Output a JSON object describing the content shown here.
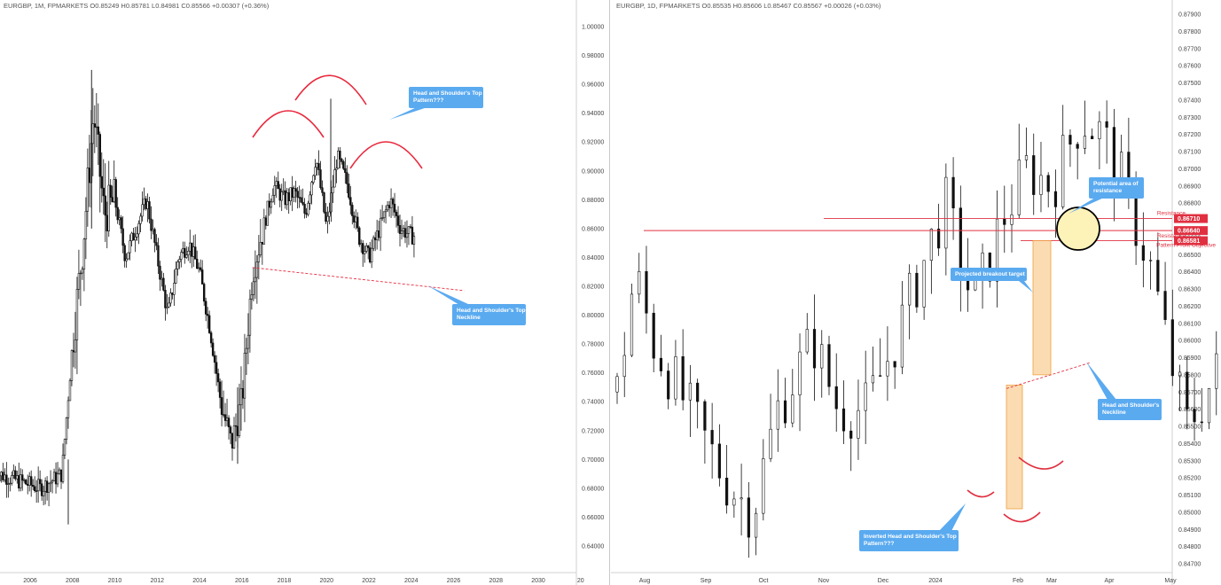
{
  "chart_data": [
    {
      "type": "candlestick",
      "header": "EURGBP, 1M, FPMARKETS  O0.85249  H0.85781  L0.84981  C0.85566  +0.00307 (+0.36%)",
      "symbol": "EURGBP",
      "timeframe": "1M",
      "broker": "FPMARKETS",
      "ohlc": {
        "open": 0.85249,
        "high": 0.85781,
        "low": 0.84981,
        "close": 0.85566,
        "change": "+0.00307 (+0.36%)"
      },
      "ylim": [
        0.63,
        1.02
      ],
      "y_ticks": [
        "1.00000",
        "0.98000",
        "0.96000",
        "0.94000",
        "0.92000",
        "0.90000",
        "0.88000",
        "0.86000",
        "0.84000",
        "0.82000",
        "0.80000",
        "0.78000",
        "0.76000",
        "0.74000",
        "0.72000",
        "0.70000",
        "0.68000",
        "0.66000",
        "0.64000"
      ],
      "x_ticks": [
        "2006",
        "2008",
        "2010",
        "2012",
        "2014",
        "2016",
        "2018",
        "2020",
        "2022",
        "2024",
        "2026",
        "2028",
        "2030",
        "20"
      ],
      "series_approx": [
        {
          "year": 2004.5,
          "value": 0.69
        },
        {
          "year": 2005.5,
          "value": 0.685
        },
        {
          "year": 2006.5,
          "value": 0.68
        },
        {
          "year": 2007.5,
          "value": 0.69
        },
        {
          "year": 2008.0,
          "value": 0.78
        },
        {
          "year": 2008.5,
          "value": 0.85
        },
        {
          "year": 2009.0,
          "value": 0.94
        },
        {
          "year": 2009.5,
          "value": 0.87
        },
        {
          "year": 2010.0,
          "value": 0.88
        },
        {
          "year": 2010.5,
          "value": 0.84
        },
        {
          "year": 2011.0,
          "value": 0.86
        },
        {
          "year": 2011.5,
          "value": 0.88
        },
        {
          "year": 2012.0,
          "value": 0.84
        },
        {
          "year": 2012.5,
          "value": 0.8
        },
        {
          "year": 2013.0,
          "value": 0.84
        },
        {
          "year": 2013.5,
          "value": 0.85
        },
        {
          "year": 2014.0,
          "value": 0.83
        },
        {
          "year": 2014.5,
          "value": 0.79
        },
        {
          "year": 2015.0,
          "value": 0.74
        },
        {
          "year": 2015.5,
          "value": 0.71
        },
        {
          "year": 2016.0,
          "value": 0.74
        },
        {
          "year": 2016.5,
          "value": 0.83
        },
        {
          "year": 2017.0,
          "value": 0.86
        },
        {
          "year": 2017.5,
          "value": 0.89
        },
        {
          "year": 2018.0,
          "value": 0.88
        },
        {
          "year": 2018.5,
          "value": 0.885
        },
        {
          "year": 2019.0,
          "value": 0.87
        },
        {
          "year": 2019.5,
          "value": 0.91
        },
        {
          "year": 2020.0,
          "value": 0.86
        },
        {
          "year": 2020.5,
          "value": 0.91
        },
        {
          "year": 2021.0,
          "value": 0.89
        },
        {
          "year": 2021.5,
          "value": 0.855
        },
        {
          "year": 2022.0,
          "value": 0.84
        },
        {
          "year": 2022.5,
          "value": 0.86
        },
        {
          "year": 2023.0,
          "value": 0.88
        },
        {
          "year": 2023.5,
          "value": 0.86
        },
        {
          "year": 2024.0,
          "value": 0.855
        }
      ],
      "annotations": {
        "pattern_label": "Head and Shoulder's Top Pattern???",
        "neckline_label": "Head and Shoulder's Top Neckline",
        "neckline": {
          "from": {
            "year": 2016.5,
            "value": 0.833
          },
          "to": {
            "year": 2026.5,
            "value": 0.817
          }
        }
      },
      "colors": {
        "candle": "#111111",
        "arc": "#e8283c",
        "callout": "#5aaaf0",
        "neckline": "#e8283c"
      }
    },
    {
      "type": "candlestick",
      "header": "EURGBP, 1D, FPMARKETS  O0.85535  H0.85606  L0.85467  C0.85567  +0.00026 (+0.03%)",
      "symbol": "EURGBP",
      "timeframe": "1D",
      "broker": "FPMARKETS",
      "ohlc": {
        "open": 0.85535,
        "high": 0.85606,
        "low": 0.85467,
        "close": 0.85567,
        "change": "+0.00026 (+0.03%)"
      },
      "ylim": [
        0.8466,
        0.8797
      ],
      "y_ticks": [
        "0.87900",
        "0.87800",
        "0.87700",
        "0.87600",
        "0.87500",
        "0.87400",
        "0.87300",
        "0.87200",
        "0.87100",
        "0.87000",
        "0.86900",
        "0.86800",
        "0.86700",
        "0.86600",
        "0.86500",
        "0.86400",
        "0.86300",
        "0.86200",
        "0.86100",
        "0.86000",
        "0.85900",
        "0.85800",
        "0.85700",
        "0.85600",
        "0.85500",
        "0.85400",
        "0.85300",
        "0.85200",
        "0.85100",
        "0.85000",
        "0.84900",
        "0.84800",
        "0.84700"
      ],
      "x_ticks": [
        "Aug",
        "Sep",
        "Oct",
        "Nov",
        "Dec",
        "2024",
        "Feb",
        "Mar",
        "Apr",
        "May"
      ],
      "series_approx": [
        {
          "d": 0,
          "value": 0.857
        },
        {
          "d": 5,
          "value": 0.864
        },
        {
          "d": 10,
          "value": 0.86
        },
        {
          "d": 20,
          "value": 0.856
        },
        {
          "d": 30,
          "value": 0.852
        },
        {
          "d": 38,
          "value": 0.85
        },
        {
          "d": 45,
          "value": 0.856
        },
        {
          "d": 55,
          "value": 0.86
        },
        {
          "d": 62,
          "value": 0.856
        },
        {
          "d": 70,
          "value": 0.856
        },
        {
          "d": 78,
          "value": 0.86
        },
        {
          "d": 85,
          "value": 0.864
        },
        {
          "d": 92,
          "value": 0.868
        },
        {
          "d": 100,
          "value": 0.862
        },
        {
          "d": 108,
          "value": 0.867
        },
        {
          "d": 115,
          "value": 0.87
        },
        {
          "d": 122,
          "value": 0.869
        },
        {
          "d": 130,
          "value": 0.873
        },
        {
          "d": 136,
          "value": 0.872
        },
        {
          "d": 142,
          "value": 0.869
        },
        {
          "d": 150,
          "value": 0.864
        },
        {
          "d": 155,
          "value": 0.859
        },
        {
          "d": 160,
          "value": 0.855
        },
        {
          "d": 168,
          "value": 0.858
        },
        {
          "d": 175,
          "value": 0.863
        },
        {
          "d": 180,
          "value": 0.866
        },
        {
          "d": 185,
          "value": 0.864
        },
        {
          "d": 190,
          "value": 0.86
        },
        {
          "d": 196,
          "value": 0.861
        },
        {
          "d": 202,
          "value": 0.858
        },
        {
          "d": 208,
          "value": 0.856
        },
        {
          "d": 214,
          "value": 0.854
        },
        {
          "d": 220,
          "value": 0.853
        },
        {
          "d": 226,
          "value": 0.854
        },
        {
          "d": 232,
          "value": 0.851
        },
        {
          "d": 238,
          "value": 0.8555
        },
        {
          "d": 242,
          "value": 0.854
        },
        {
          "d": 246,
          "value": 0.855
        },
        {
          "d": 250,
          "value": 0.856
        }
      ],
      "annotations": {
        "resistance_label": "Resistance",
        "resistance_1": 0.8671,
        "resistance_2": 0.8664,
        "pattern_objective": 0.86581,
        "objective_label": "Pattern Profit Objective",
        "price_tags": [
          "0.86710",
          "0.86640",
          "0.86581"
        ],
        "potential_resistance_label": "Potential area of resistance",
        "projected_target_label": "Projected breakout target",
        "neckline_label": "Head and Shoulder's Neckline",
        "inverted_pattern_label": "Inverted Head and Shoulder's Top Pattern???"
      },
      "colors": {
        "candle": "#111111",
        "resistance": "#e03040",
        "target_box": "#fbdcb2",
        "target_border": "#f0a040",
        "circle": "#fdf2b8",
        "callout": "#5aaaf0"
      }
    }
  ]
}
